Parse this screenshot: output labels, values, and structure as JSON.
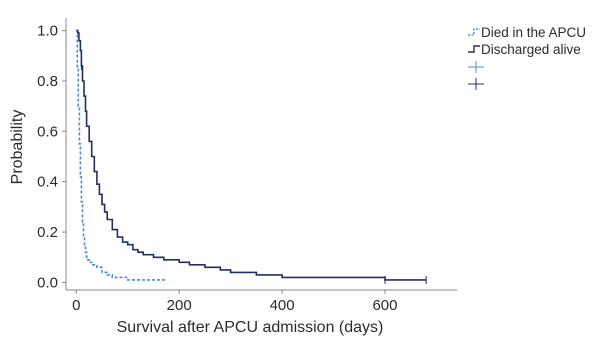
{
  "chart_data": {
    "type": "line",
    "subtype": "kaplan-meier",
    "title": "",
    "xlabel": "Survival after APCU admission (days)",
    "ylabel": "Probability",
    "xlim": [
      -20,
      740
    ],
    "ylim": [
      -0.03,
      1.05
    ],
    "xticks": [
      0,
      200,
      400,
      600
    ],
    "yticks": [
      0.0,
      0.2,
      0.4,
      0.6,
      0.8,
      1.0
    ],
    "xtick_labels": [
      "0",
      "200",
      "400",
      "600"
    ],
    "ytick_labels": [
      "0.0",
      "0.2",
      "0.4",
      "0.6",
      "0.8",
      "1.0"
    ],
    "grid": false,
    "legend_position": "top-right",
    "legend": {
      "entries": [
        "Died in the APCU",
        "Discharged alive"
      ],
      "symbols": [
        "",
        ""
      ]
    },
    "colors": {
      "died": "#4a8fcb",
      "discharged": "#23305f",
      "axis": "#8a8a8a"
    },
    "series": [
      {
        "name": "Died in the APCU",
        "style": "dashed",
        "x": [
          0,
          2,
          4,
          6,
          8,
          10,
          12,
          14,
          16,
          18,
          20,
          22,
          25,
          30,
          35,
          40,
          50,
          60,
          70,
          80,
          100,
          120,
          150,
          175
        ],
        "y": [
          1.0,
          0.85,
          0.7,
          0.55,
          0.42,
          0.32,
          0.24,
          0.18,
          0.14,
          0.12,
          0.1,
          0.09,
          0.08,
          0.07,
          0.07,
          0.06,
          0.04,
          0.03,
          0.02,
          0.02,
          0.01,
          0.01,
          0.01,
          0.01
        ],
        "censored_x": []
      },
      {
        "name": "Discharged alive",
        "style": "solid",
        "x": [
          0,
          3,
          5,
          8,
          10,
          12,
          15,
          18,
          20,
          25,
          30,
          35,
          40,
          45,
          50,
          55,
          60,
          70,
          80,
          90,
          100,
          110,
          120,
          130,
          150,
          170,
          200,
          220,
          250,
          280,
          300,
          350,
          400,
          450,
          500,
          550,
          600,
          620,
          650,
          680
        ],
        "y": [
          1.0,
          0.99,
          0.96,
          0.92,
          0.86,
          0.8,
          0.74,
          0.68,
          0.62,
          0.56,
          0.5,
          0.44,
          0.39,
          0.35,
          0.31,
          0.28,
          0.25,
          0.21,
          0.18,
          0.16,
          0.15,
          0.13,
          0.12,
          0.11,
          0.1,
          0.09,
          0.08,
          0.07,
          0.06,
          0.05,
          0.04,
          0.03,
          0.02,
          0.02,
          0.02,
          0.02,
          0.01,
          0.01,
          0.01,
          0.01
        ],
        "censored_x": [
          10,
          600,
          680
        ]
      }
    ]
  }
}
